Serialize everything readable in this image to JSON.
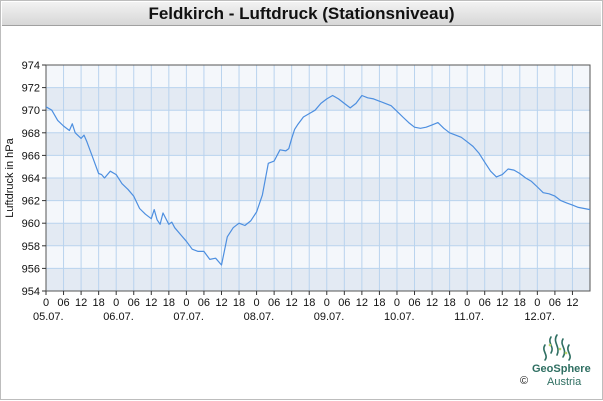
{
  "header": {
    "title": "Feldkirch - Luftdruck (Stationsniveau)"
  },
  "logo": {
    "name": "GeoSphere",
    "sub": "Austria",
    "copyright": "©"
  },
  "colors": {
    "line": "#4d8fe0",
    "band_dark": "#e3eaf3",
    "band_light": "#f4f7fb",
    "grid": "#b9d3ee"
  },
  "chart_data": {
    "type": "line",
    "title": "Feldkirch - Luftdruck (Stationsniveau)",
    "ylabel": "Luftdruck in hPa",
    "xlabel": "",
    "ylim": [
      954,
      974
    ],
    "yticks": [
      954,
      956,
      958,
      960,
      962,
      964,
      966,
      968,
      970,
      972,
      974
    ],
    "xlim": [
      0,
      186
    ],
    "xticks": [
      {
        "h": 0,
        "label": "0"
      },
      {
        "h": 6,
        "label": "06"
      },
      {
        "h": 12,
        "label": "12"
      },
      {
        "h": 18,
        "label": "18"
      },
      {
        "h": 24,
        "label": "0"
      },
      {
        "h": 30,
        "label": "06"
      },
      {
        "h": 36,
        "label": "12"
      },
      {
        "h": 42,
        "label": "18"
      },
      {
        "h": 48,
        "label": "0"
      },
      {
        "h": 54,
        "label": "06"
      },
      {
        "h": 60,
        "label": "12"
      },
      {
        "h": 66,
        "label": "18"
      },
      {
        "h": 72,
        "label": "0"
      },
      {
        "h": 78,
        "label": "06"
      },
      {
        "h": 84,
        "label": "12"
      },
      {
        "h": 90,
        "label": "18"
      },
      {
        "h": 96,
        "label": "0"
      },
      {
        "h": 102,
        "label": "06"
      },
      {
        "h": 108,
        "label": "12"
      },
      {
        "h": 114,
        "label": "18"
      },
      {
        "h": 120,
        "label": "0"
      },
      {
        "h": 126,
        "label": "06"
      },
      {
        "h": 132,
        "label": "12"
      },
      {
        "h": 138,
        "label": "18"
      },
      {
        "h": 144,
        "label": "0"
      },
      {
        "h": 150,
        "label": "06"
      },
      {
        "h": 156,
        "label": "12"
      },
      {
        "h": 162,
        "label": "18"
      },
      {
        "h": 168,
        "label": "0"
      },
      {
        "h": 174,
        "label": "06"
      },
      {
        "h": 180,
        "label": "12"
      }
    ],
    "date_labels": [
      {
        "h": 0,
        "label": "05.07."
      },
      {
        "h": 24,
        "label": "06.07."
      },
      {
        "h": 48,
        "label": "07.07."
      },
      {
        "h": 72,
        "label": "08.07."
      },
      {
        "h": 96,
        "label": "09.07."
      },
      {
        "h": 120,
        "label": "10.07."
      },
      {
        "h": 144,
        "label": "11.07."
      },
      {
        "h": 168,
        "label": "12.07."
      }
    ],
    "grid": true,
    "series": [
      {
        "x": [
          0,
          2,
          4,
          6,
          8,
          9,
          10,
          12,
          13,
          14,
          16,
          18,
          19,
          20,
          22,
          24,
          26,
          28,
          30,
          32,
          34,
          36,
          37,
          38,
          39,
          40,
          42,
          43,
          44,
          46,
          48,
          50,
          52,
          54,
          56,
          58,
          60,
          62,
          64,
          66,
          68,
          70,
          72,
          74,
          76,
          78,
          80,
          82,
          83,
          84,
          85,
          86,
          88,
          90,
          92,
          94,
          96,
          98,
          100,
          102,
          104,
          106,
          108,
          110,
          112,
          114,
          116,
          118,
          120,
          122,
          124,
          126,
          128,
          130,
          132,
          134,
          136,
          138,
          140,
          142,
          144,
          146,
          148,
          150,
          152,
          154,
          156,
          158,
          160,
          162,
          164,
          166,
          168,
          170,
          172,
          174,
          176,
          178,
          180,
          182,
          184,
          186
        ],
        "y": [
          970.3,
          970.0,
          969.1,
          968.6,
          968.2,
          968.8,
          968.0,
          967.5,
          967.8,
          967.2,
          965.8,
          964.4,
          964.3,
          964.0,
          964.6,
          964.3,
          963.5,
          963.0,
          962.4,
          961.3,
          960.8,
          960.4,
          961.2,
          960.3,
          959.9,
          960.9,
          959.9,
          960.1,
          959.6,
          959.0,
          958.4,
          957.7,
          957.5,
          957.5,
          956.8,
          956.9,
          956.3,
          958.8,
          959.6,
          960.0,
          959.8,
          960.2,
          961.0,
          962.5,
          965.3,
          965.5,
          966.5,
          966.4,
          966.6,
          967.5,
          968.3,
          968.7,
          969.4,
          969.7,
          970.0,
          970.6,
          971.0,
          971.3,
          971.0,
          970.6,
          970.2,
          970.6,
          971.3,
          971.1,
          971.0,
          970.8,
          970.6,
          970.4,
          969.9,
          969.4,
          968.9,
          968.5,
          968.4,
          968.5,
          968.7,
          968.9,
          968.4,
          968.0,
          967.8,
          967.6,
          967.2,
          966.8,
          966.2,
          965.4,
          964.6,
          964.1,
          964.3,
          964.8,
          964.7,
          964.4,
          964.0,
          963.7,
          963.2,
          962.7,
          962.6,
          962.4,
          962.0,
          961.8,
          961.6,
          961.4,
          961.3,
          961.2
        ]
      }
    ]
  }
}
